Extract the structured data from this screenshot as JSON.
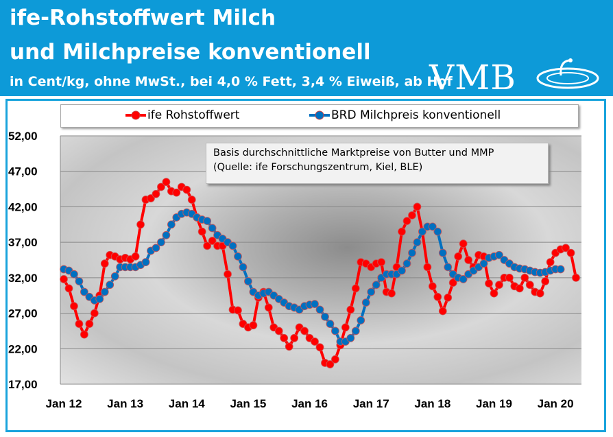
{
  "header": {
    "title_line1": "ife-Rohstoffwert Milch",
    "title_line2": "und Milchpreise konventionell",
    "subtitle": "in Cent/kg, ohne MwSt., bei 4,0 % Fett, 3,4 % Eiweiß, ab Hof",
    "logo": "VMB",
    "color": "#0d9ad8"
  },
  "chart_data": {
    "type": "line",
    "note_line1": "Basis durchschnittliche Marktpreise von Butter und MMP",
    "note_line2": "(Quelle: ife Forschungszentrum, Kiel, BLE)",
    "ylim": [
      17,
      52
    ],
    "yticks": [
      "17,00",
      "22,00",
      "27,00",
      "32,00",
      "37,00",
      "42,00",
      "47,00",
      "52,00"
    ],
    "xticks": [
      "Jan 12",
      "Jan 13",
      "Jan 14",
      "Jan 15",
      "Jan 16",
      "Jan 17",
      "Jan 18",
      "Jan 19",
      "Jan 20"
    ],
    "x_start": "2012-01",
    "x_interval": "monthly",
    "grid": "horizontal",
    "legend": "top",
    "series": [
      {
        "name": "ife Rohstoffwert",
        "color": "#ff0000",
        "values": [
          31.8,
          30.5,
          28,
          25.5,
          24,
          25.5,
          27,
          29.5,
          34,
          35.2,
          35,
          34.6,
          34.8,
          34.6,
          35,
          39.5,
          43,
          43.2,
          43.8,
          44.8,
          45.5,
          44.2,
          44,
          44.8,
          44.4,
          43,
          40.5,
          38.5,
          36.5,
          37.2,
          36.5,
          36.5,
          32.5,
          27.5,
          27.4,
          25.5,
          25,
          25.3,
          29.2,
          30,
          27.8,
          25,
          24.5,
          23.5,
          22.3,
          23.5,
          25,
          24.5,
          23.5,
          23,
          22.2,
          20,
          19.8,
          20.5,
          22.5,
          25,
          27.5,
          30.5,
          34.2,
          34,
          33.5,
          34,
          34.2,
          30,
          29.8,
          33.5,
          38.5,
          40,
          40.8,
          42,
          38.5,
          33.5,
          30.8,
          29.3,
          27.3,
          29.2,
          31.3,
          35,
          36.8,
          34.5,
          33.5,
          35.2,
          35,
          31.2,
          29.8,
          31,
          32,
          32,
          30.8,
          30.5,
          32,
          31,
          30,
          29.8,
          31.5,
          34.2,
          35.5,
          36,
          36.2,
          35.5,
          32
        ]
      },
      {
        "name": "BRD Milchpreis konventionell",
        "color": "#0070c0",
        "values": [
          33.2,
          33,
          32.5,
          31.5,
          30,
          29.3,
          28.8,
          29,
          30,
          31,
          32.2,
          33.5,
          33.5,
          33.5,
          33.5,
          33.8,
          34.2,
          35.8,
          36.2,
          37,
          38,
          39.5,
          40.5,
          41,
          41.2,
          41,
          40.5,
          40.2,
          40,
          39,
          38,
          37.5,
          37,
          36.5,
          35,
          33.5,
          31.5,
          30,
          29.5,
          29.8,
          30,
          29.5,
          29,
          28.5,
          28,
          27.8,
          27.5,
          28,
          28.2,
          28.3,
          27.5,
          26.5,
          25.5,
          24.5,
          23,
          23,
          23.5,
          24.5,
          26,
          28.5,
          30,
          31,
          32,
          32.5,
          32.5,
          32.5,
          33,
          34,
          35.5,
          37,
          38.5,
          39.2,
          39.2,
          38.5,
          35.5,
          33.5,
          32.5,
          32,
          31.8,
          32.5,
          33,
          33.5,
          34,
          34.8,
          35,
          35.2,
          34.5,
          34,
          33.5,
          33.3,
          33.2,
          33,
          32.8,
          32.7,
          32.8,
          33,
          33.2,
          33.2
        ]
      }
    ]
  }
}
